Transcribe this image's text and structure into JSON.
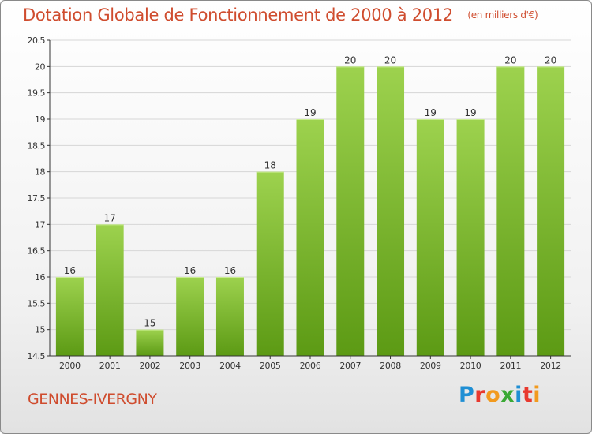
{
  "header": {
    "title": "Dotation Globale de Fonctionnement de 2000 à 2012",
    "unit": "(en milliers d'€)"
  },
  "footer": {
    "commune": "GENNES-IVERGNY",
    "logo_text": "Proxiti"
  },
  "colors": {
    "title": "#cf4c2e",
    "bar_top": "#9dd24e",
    "bar_bottom": "#5c9a14",
    "grid": "#d6d6d6",
    "axis": "#333333",
    "logo_letters": [
      "#1f8fd4",
      "#e8392f",
      "#f29a1e",
      "#3aa935",
      "#1f8fd4",
      "#e8392f",
      "#f29a1e"
    ]
  },
  "chart_data": {
    "type": "bar",
    "categories": [
      "2000",
      "2001",
      "2002",
      "2003",
      "2004",
      "2005",
      "2006",
      "2007",
      "2008",
      "2009",
      "2010",
      "2011",
      "2012"
    ],
    "values": [
      16,
      17,
      15,
      16,
      16,
      18,
      19,
      20,
      20,
      19,
      19,
      20,
      20
    ],
    "title": "Dotation Globale de Fonctionnement de 2000 à 2012",
    "subtitle": "(en milliers d'€)",
    "xlabel": "",
    "ylabel": "",
    "ylim": [
      14.5,
      20.5
    ],
    "yticks": [
      "14.5",
      "15",
      "15.5",
      "16",
      "16.5",
      "17",
      "17.5",
      "18",
      "18.5",
      "19",
      "19.5",
      "20",
      "20.5"
    ],
    "grid": true,
    "legend": "none"
  }
}
